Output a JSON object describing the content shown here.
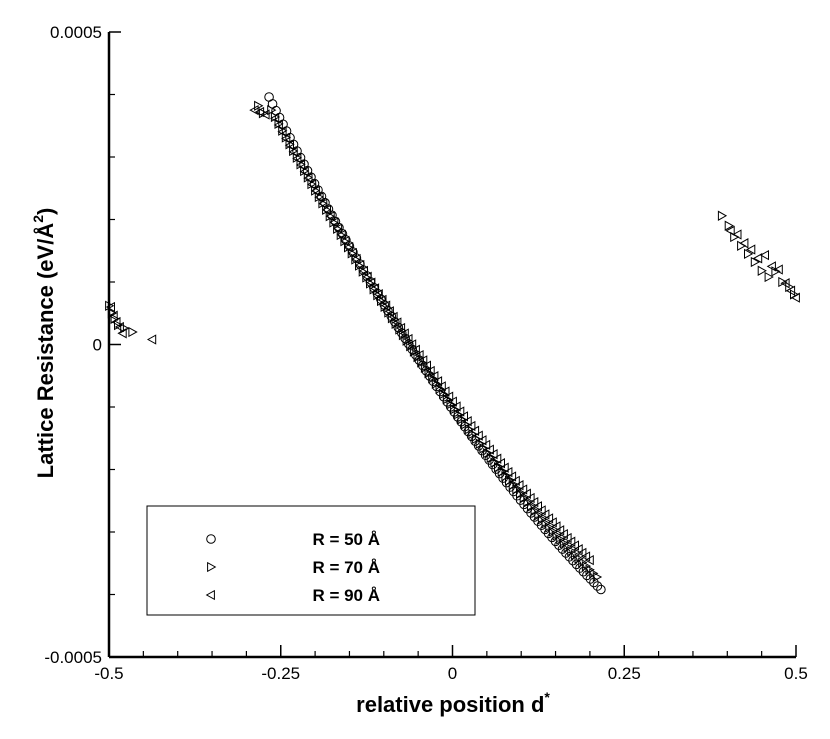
{
  "chart_data": {
    "type": "scatter",
    "xlabel": "relative position d",
    "xlabel_sup": "*",
    "ylabel": "Lattice Resistance (eV/Å",
    "ylabel_sup": "2",
    "ylabel_end": ")",
    "xlim": [
      -0.5,
      0.5
    ],
    "ylim": [
      -0.0005,
      0.0005
    ],
    "x_ticks": [
      {
        "value": -0.5,
        "label": "-0.5"
      },
      {
        "value": -0.25,
        "label": "-0.25"
      },
      {
        "value": 0,
        "label": "0"
      },
      {
        "value": 0.25,
        "label": "0.25"
      },
      {
        "value": 0.5,
        "label": "0.5"
      }
    ],
    "y_ticks": [
      {
        "value": -0.0005,
        "label": "-0.0005"
      },
      {
        "value": 0,
        "label": "0"
      },
      {
        "value": 0.0005,
        "label": "0.0005"
      }
    ],
    "x_minor_step": 0.05,
    "y_minor_step": 0.0001,
    "grid": false,
    "legend_position": "bottom-left",
    "series": [
      {
        "name": "R = 50 Å",
        "marker": "circle",
        "segments": [
          {
            "x_start": -0.267,
            "x_end": 0.216,
            "count": 96,
            "y_start": 0.000396,
            "y_end": -0.000392,
            "curve": -6.5e-05
          }
        ],
        "points": []
      },
      {
        "name": "R = 70 Å",
        "marker": "triangle-right",
        "segments": [
          {
            "x_start": -0.264,
            "x_end": 0.21,
            "count": 90,
            "y_start": 0.000375,
            "y_end": -0.000372,
            "curve": -6e-05
          }
        ],
        "points": [
          [
            -0.283,
            0.000382
          ],
          [
            -0.276,
            0.00037
          ],
          [
            -0.5,
            6.2e-05
          ],
          [
            -0.496,
            5e-05
          ],
          [
            -0.492,
            4.1e-05
          ],
          [
            -0.487,
            3.1e-05
          ],
          [
            -0.478,
            2.6e-05
          ],
          [
            -0.466,
            2e-05
          ],
          [
            0.392,
            0.000206
          ],
          [
            0.402,
            0.00019
          ],
          [
            0.41,
            0.000172
          ],
          [
            0.42,
            0.000158
          ],
          [
            0.43,
            0.000145
          ],
          [
            0.44,
            0.000132
          ],
          [
            0.45,
            0.000118
          ],
          [
            0.46,
            0.000108
          ],
          [
            0.47,
            0.000117
          ],
          [
            0.48,
            0.0001
          ],
          [
            0.49,
            9.2e-05
          ],
          [
            0.497,
            8e-05
          ]
        ]
      },
      {
        "name": "R = 90 Å",
        "marker": "triangle-left",
        "segments": [
          {
            "x_start": -0.258,
            "x_end": 0.2,
            "count": 86,
            "y_start": 0.000362,
            "y_end": -0.000345,
            "curve": -5.5e-05
          }
        ],
        "points": [
          [
            -0.288,
            0.000375
          ],
          [
            -0.28,
            0.000372
          ],
          [
            -0.272,
            0.000368
          ],
          [
            -0.497,
            6e-05
          ],
          [
            -0.493,
            4.6e-05
          ],
          [
            -0.489,
            3.6e-05
          ],
          [
            -0.484,
            2.8e-05
          ],
          [
            -0.48,
            1.8e-05
          ],
          [
            -0.437,
            8e-06
          ],
          [
            0.405,
            0.000182
          ],
          [
            0.415,
            0.000176
          ],
          [
            0.425,
            0.000162
          ],
          [
            0.435,
            0.000152
          ],
          [
            0.445,
            0.000138
          ],
          [
            0.455,
            0.000143
          ],
          [
            0.465,
            0.000125
          ],
          [
            0.475,
            0.00012
          ],
          [
            0.485,
            9.8e-05
          ],
          [
            0.493,
            8.6e-05
          ],
          [
            0.5,
            7.5e-05
          ]
        ]
      }
    ]
  }
}
